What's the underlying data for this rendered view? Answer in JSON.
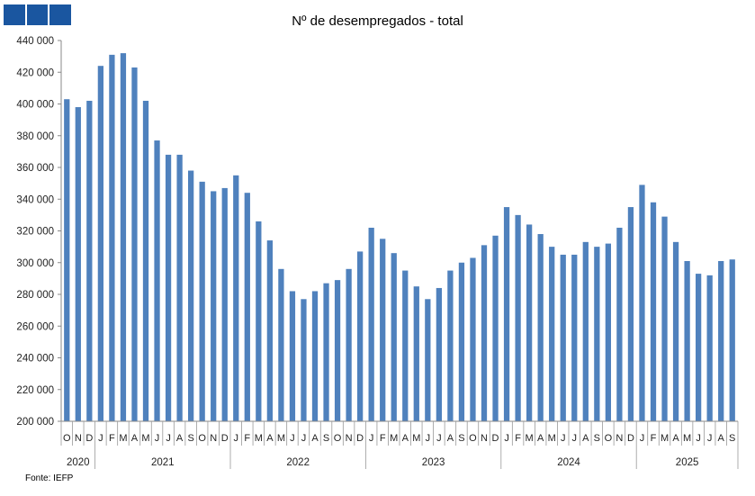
{
  "logo": {
    "icon": "iefp-logo-icon",
    "color": "#1a56a0"
  },
  "source": "Fonte: IEFP",
  "chart_data": {
    "type": "bar",
    "title": "Nº de desempregados - total",
    "xlabel": "",
    "ylabel": "",
    "ylim": [
      200000,
      440000
    ],
    "yticks": [
      200000,
      220000,
      240000,
      260000,
      280000,
      300000,
      320000,
      340000,
      360000,
      380000,
      400000,
      420000,
      440000
    ],
    "ytick_labels": [
      "200 000",
      "220 000",
      "240 000",
      "260 000",
      "280 000",
      "300 000",
      "320 000",
      "340 000",
      "360 000",
      "380 000",
      "400 000",
      "420 000",
      "440 000"
    ],
    "bar_color": "#4f81bd",
    "grid": false,
    "categories": [
      "O",
      "N",
      "D",
      "J",
      "F",
      "M",
      "A",
      "M",
      "J",
      "J",
      "A",
      "S",
      "O",
      "N",
      "D",
      "J",
      "F",
      "M",
      "A",
      "M",
      "J",
      "J",
      "A",
      "S",
      "O",
      "N",
      "D",
      "J",
      "F",
      "M",
      "A",
      "M",
      "J",
      "J",
      "A",
      "S",
      "O",
      "N",
      "D",
      "J",
      "F",
      "M",
      "A",
      "M",
      "J",
      "J",
      "A",
      "S",
      "O",
      "N",
      "D",
      "J",
      "F",
      "M",
      "A",
      "M",
      "J",
      "J",
      "A",
      "S"
    ],
    "values": [
      403000,
      398000,
      402000,
      424000,
      431000,
      432000,
      423000,
      402000,
      377000,
      368000,
      368000,
      358000,
      351000,
      345000,
      347000,
      355000,
      344000,
      326000,
      314000,
      296000,
      282000,
      277000,
      282000,
      287000,
      289000,
      296000,
      307000,
      322000,
      315000,
      306000,
      295000,
      285000,
      277000,
      284000,
      295000,
      300000,
      303000,
      311000,
      317000,
      335000,
      330000,
      324000,
      318000,
      310000,
      305000,
      305000,
      313000,
      310000,
      312000,
      322000,
      335000,
      349000,
      338000,
      329000,
      313000,
      301000,
      293000,
      292000,
      301000,
      302000
    ],
    "years": [
      {
        "label": "2020",
        "start": 0,
        "count": 3
      },
      {
        "label": "2021",
        "start": 3,
        "count": 12
      },
      {
        "label": "2022",
        "start": 15,
        "count": 12
      },
      {
        "label": "2023",
        "start": 27,
        "count": 12
      },
      {
        "label": "2024",
        "start": 39,
        "count": 12
      },
      {
        "label": "2025",
        "start": 51,
        "count": 9
      }
    ]
  }
}
